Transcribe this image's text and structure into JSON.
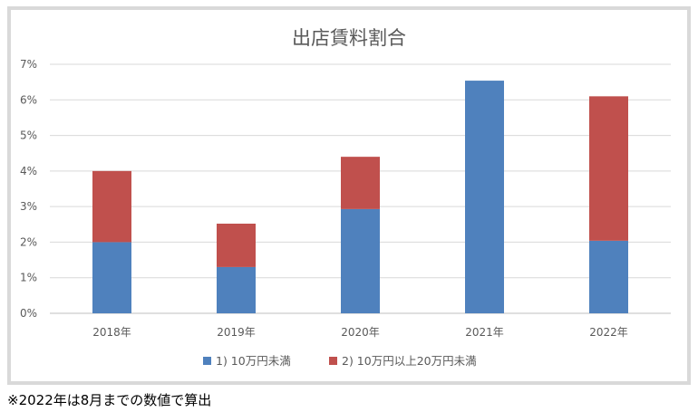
{
  "chart_data": {
    "type": "bar",
    "stacked": true,
    "title": "出店賃料割合",
    "categories": [
      "2018年",
      "2019年",
      "2020年",
      "2021年",
      "2022年"
    ],
    "series": [
      {
        "name": "1) 10万円未満",
        "color": "#4f81bd",
        "values": [
          2.0,
          1.3,
          2.93,
          6.54,
          2.04
        ]
      },
      {
        "name": "2) 10万円以上20万円未満",
        "color": "#c0504d",
        "values": [
          2.0,
          1.22,
          1.47,
          0,
          4.06
        ]
      }
    ],
    "ylim": [
      0,
      7
    ],
    "yticks": [
      "0%",
      "1%",
      "2%",
      "3%",
      "4%",
      "5%",
      "6%",
      "7%"
    ],
    "grid": true,
    "legend": "bottom"
  },
  "footnote": "※2022年は8月までの数値で算出"
}
